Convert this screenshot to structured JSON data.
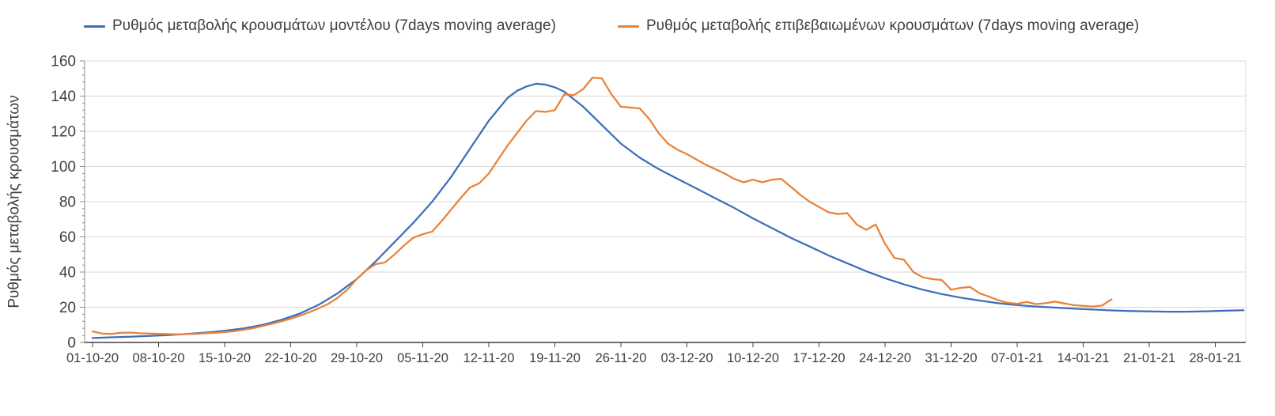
{
  "chart_data": {
    "type": "line",
    "title": "",
    "xlabel": "",
    "ylabel": "Ρυθμός μεταβολής κρουσμάτων",
    "ylim": [
      0,
      160
    ],
    "y_ticks": [
      0,
      20,
      40,
      60,
      80,
      100,
      120,
      140,
      160
    ],
    "y_minor_tick_step": 4,
    "x_tick_labels": [
      "01-10-20",
      "08-10-20",
      "15-10-20",
      "22-10-20",
      "29-10-20",
      "05-11-20",
      "12-11-20",
      "19-11-20",
      "26-11-20",
      "03-12-20",
      "10-12-20",
      "17-12-20",
      "24-12-20",
      "31-12-20",
      "07-01-21",
      "14-01-21",
      "21-01-21",
      "28-01-21"
    ],
    "x_tick_interval_days": 7,
    "x_unit": "days since 01-10-20",
    "grid": "horizontal",
    "legend_position": "top",
    "series": [
      {
        "name": "Ρυθμός μεταβολής κρουσμάτων μοντέλου (7days moving average)",
        "color": "#3D6EB8",
        "points": [
          [
            0,
            2.5
          ],
          [
            2,
            2.9
          ],
          [
            4,
            3.3
          ],
          [
            6,
            3.7
          ],
          [
            8,
            4.2
          ],
          [
            10,
            4.8
          ],
          [
            12,
            5.6
          ],
          [
            14,
            6.6
          ],
          [
            16,
            8
          ],
          [
            18,
            10
          ],
          [
            20,
            12.8
          ],
          [
            22,
            16.5
          ],
          [
            24,
            21.5
          ],
          [
            26,
            28
          ],
          [
            28,
            36
          ],
          [
            30,
            46
          ],
          [
            32,
            57
          ],
          [
            34,
            68
          ],
          [
            35,
            74
          ],
          [
            36,
            80
          ],
          [
            38,
            94
          ],
          [
            40,
            110
          ],
          [
            42,
            126
          ],
          [
            44,
            139
          ],
          [
            45,
            143
          ],
          [
            46,
            145.5
          ],
          [
            47,
            147
          ],
          [
            48,
            146.5
          ],
          [
            49,
            145
          ],
          [
            50,
            142.5
          ],
          [
            52,
            134
          ],
          [
            54,
            123.5
          ],
          [
            56,
            113
          ],
          [
            58,
            105
          ],
          [
            60,
            98.5
          ],
          [
            62,
            93
          ],
          [
            64,
            87.5
          ],
          [
            66,
            82
          ],
          [
            68,
            76.5
          ],
          [
            70,
            70.5
          ],
          [
            72,
            65
          ],
          [
            74,
            59.5
          ],
          [
            76,
            54.5
          ],
          [
            78,
            49.5
          ],
          [
            80,
            45
          ],
          [
            82,
            40.5
          ],
          [
            84,
            36.5
          ],
          [
            86,
            33
          ],
          [
            88,
            30
          ],
          [
            90,
            27.5
          ],
          [
            92,
            25.5
          ],
          [
            94,
            23.8
          ],
          [
            96,
            22.3
          ],
          [
            98,
            21.2
          ],
          [
            100,
            20.4
          ],
          [
            102,
            19.8
          ],
          [
            104,
            19.2
          ],
          [
            106,
            18.7
          ],
          [
            108,
            18.2
          ],
          [
            110,
            17.9
          ],
          [
            112,
            17.6
          ],
          [
            114,
            17.5
          ],
          [
            116,
            17.5
          ],
          [
            118,
            17.7
          ],
          [
            120,
            18
          ],
          [
            122,
            18.3
          ]
        ]
      },
      {
        "name": "Ρυθμός μεταβολής επιβεβαιωμένων κρουσμάτων (7days moving average)",
        "color": "#E8823A",
        "points": [
          [
            0,
            6.3
          ],
          [
            1,
            5.1
          ],
          [
            2,
            4.8
          ],
          [
            3,
            5.5
          ],
          [
            4,
            5.6
          ],
          [
            5,
            5.2
          ],
          [
            7,
            4.9
          ],
          [
            9,
            4.6
          ],
          [
            11,
            4.9
          ],
          [
            13,
            5.5
          ],
          [
            14,
            5.9
          ],
          [
            15,
            6.4
          ],
          [
            16,
            7.2
          ],
          [
            17,
            8.1
          ],
          [
            18,
            9.3
          ],
          [
            19,
            10.6
          ],
          [
            20,
            12
          ],
          [
            21,
            13.5
          ],
          [
            22,
            15.3
          ],
          [
            23,
            17.2
          ],
          [
            24,
            19.5
          ],
          [
            25,
            22
          ],
          [
            26,
            25.5
          ],
          [
            27,
            30
          ],
          [
            28,
            36
          ],
          [
            29,
            41
          ],
          [
            30,
            44.5
          ],
          [
            31,
            45.5
          ],
          [
            32,
            50
          ],
          [
            33,
            55
          ],
          [
            34,
            59.5
          ],
          [
            35,
            61.5
          ],
          [
            36,
            63
          ],
          [
            37,
            69
          ],
          [
            38,
            75.5
          ],
          [
            39,
            82
          ],
          [
            40,
            88
          ],
          [
            41,
            90.5
          ],
          [
            42,
            96
          ],
          [
            43,
            104
          ],
          [
            44,
            112
          ],
          [
            45,
            119
          ],
          [
            46,
            126
          ],
          [
            47,
            131.5
          ],
          [
            48,
            131
          ],
          [
            49,
            132
          ],
          [
            50,
            141
          ],
          [
            51,
            140.5
          ],
          [
            52,
            144
          ],
          [
            53,
            150.5
          ],
          [
            54,
            150
          ],
          [
            55,
            141
          ],
          [
            56,
            134
          ],
          [
            57,
            133.5
          ],
          [
            58,
            133
          ],
          [
            59,
            127
          ],
          [
            60,
            119
          ],
          [
            61,
            113
          ],
          [
            62,
            109.5
          ],
          [
            63,
            107
          ],
          [
            64,
            104
          ],
          [
            65,
            101
          ],
          [
            66,
            98.5
          ],
          [
            67,
            96
          ],
          [
            68,
            93
          ],
          [
            69,
            91
          ],
          [
            70,
            92.5
          ],
          [
            71,
            91
          ],
          [
            72,
            92.5
          ],
          [
            73,
            93
          ],
          [
            74,
            88.5
          ],
          [
            75,
            84
          ],
          [
            76,
            80
          ],
          [
            77,
            77
          ],
          [
            78,
            74
          ],
          [
            79,
            73
          ],
          [
            80,
            73.5
          ],
          [
            81,
            67
          ],
          [
            82,
            64
          ],
          [
            83,
            67
          ],
          [
            84,
            56
          ],
          [
            85,
            48
          ],
          [
            86,
            47
          ],
          [
            87,
            40
          ],
          [
            88,
            37
          ],
          [
            89,
            36
          ],
          [
            90,
            35.5
          ],
          [
            91,
            30
          ],
          [
            92,
            31
          ],
          [
            93,
            31.5
          ],
          [
            94,
            28
          ],
          [
            95,
            26
          ],
          [
            96,
            24
          ],
          [
            97,
            22.5
          ],
          [
            98,
            22
          ],
          [
            99,
            23
          ],
          [
            100,
            21.8
          ],
          [
            101,
            22.3
          ],
          [
            102,
            23.2
          ],
          [
            103,
            22.2
          ],
          [
            104,
            21.2
          ],
          [
            105,
            20.8
          ],
          [
            106,
            20.4
          ],
          [
            107,
            21
          ],
          [
            108,
            24.5
          ]
        ]
      }
    ]
  },
  "colors": {
    "grid": "#D9D9D9",
    "plot_border": "#D9D9D9",
    "x_axis": "#404040",
    "y_axis": "#8C8C8C",
    "tick_text": "#404040",
    "legend_text": "#404040",
    "background": "#FFFFFF"
  }
}
